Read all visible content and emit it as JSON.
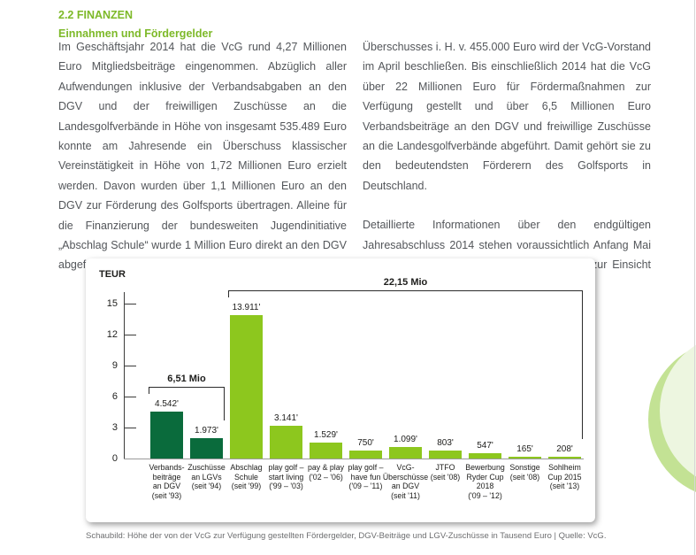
{
  "page": {
    "section_heading": "2.2 FINANZEN",
    "subsection_heading": "Einnahmen und Fördergelder",
    "left_column_text": "Im Geschäftsjahr 2014 hat die VcG rund 4,27 Millionen Euro Mitgliedsbeiträge eingenommen. Abzüglich aller Aufwendungen inklusive der Verbandsabgaben an den DGV und der freiwilligen Zuschüsse an die Landesgolfverbände in Höhe von insgesamt 535.489 Euro konnte am Jahresende ein Überschuss klassischer Vereinstätigkeit in Höhe von 1,72 Millionen Euro erzielt werden. Davon wurden über 1,1 Millionen Euro an den DGV zur Förderung des Golfsports übertragen. Alleine für die Finanzierung der bundesweiten Jugendinitiative „Abschlag Schule“ wurde 1 Million Euro direkt an den DGV abgeführt. Über die Verwendung des verbleibenden",
    "right_column_p1": "Überschusses i. H. v. 455.000 Euro wird der VcG-Vorstand im April beschließen. Bis einschließlich 2014 hat die VcG über 22 Millionen Euro für Fördermaßnahmen zur Verfügung gestellt und über 6,5 Millionen Euro Verbandsbeiträge an den DGV und freiwillige Zuschüsse an die Landesgolfverbände abgeführt. Damit gehört sie zu den bedeutendsten Förderern des Golfsports in Deutschland.",
    "right_column_p2": "Detaillierte Informationen über den endgültigen Jahresabschluss 2014 stehen voraussichtlich Anfang Mai auf der Website der VcG unter www.vcg.de zur Einsicht bereit.",
    "caption": "Schaubild: Höhe der von der VcG zur Verfügung gestellten Fördergelder, DGV-Beiträge und LGV-Zuschüsse in Tausend Euro | Quelle: VcG."
  },
  "colors": {
    "heading_green": "#7db928",
    "bar_dark_green": "#0a6b3c",
    "bar_bright_green": "#8dc71e",
    "body_text": "#53565a",
    "caption_gray": "#6d6e70",
    "deco_circle_fill": "#edf6e0",
    "deco_circle_rim": "#c3e294"
  },
  "chart_data": {
    "type": "bar",
    "title": "",
    "unit_label": "TEUR",
    "ylabel": "TEUR",
    "xlabel": "",
    "ylim": [
      0,
      15
    ],
    "yticks": [
      0,
      3,
      6,
      9,
      12,
      15
    ],
    "grid": false,
    "legend": null,
    "categories": [
      "Verbands-\nbeiträge\nan DGV\n(seit '93)",
      "Zuschüsse\nan LGVs\n(seit '94)",
      "Abschlag\nSchule\n(seit '99)",
      "play golf –\nstart living\n('99 – '03)",
      "pay & play\n('02 – '06)",
      "play golf –\nhave fun\n('09 – '11)",
      "VcG-\nÜberschüsse\nan DGV\n(seit '11)",
      "JTFO\n(seit '08)",
      "Bewerbung\nRyder Cup\n2018\n('09 – '12)",
      "Sonstige\n(seit '08)",
      "Sohlheim\nCup 2015\n(seit '13)"
    ],
    "values_teur": [
      4542,
      1973,
      13911,
      3141,
      1529,
      750,
      1099,
      803,
      547,
      165,
      208
    ],
    "value_labels": [
      "4.542'",
      "1.973'",
      "13.911'",
      "3.141'",
      "1.529'",
      "750'",
      "1.099'",
      "803'",
      "547'",
      "165'",
      "208'"
    ],
    "bar_palette": [
      "dark",
      "dark",
      "bright",
      "bright",
      "bright",
      "bright",
      "bright",
      "bright",
      "bright",
      "bright",
      "bright"
    ],
    "brackets": [
      {
        "label": "6,51 Mio",
        "from": 0,
        "to": 1
      },
      {
        "label": "22,15 Mio",
        "from": 2,
        "to": 10
      }
    ]
  }
}
